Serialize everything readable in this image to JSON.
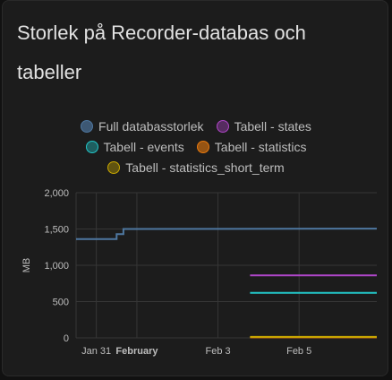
{
  "card": {
    "title": "Storlek på Recorder-databas och tabeller"
  },
  "chart_data": {
    "type": "line",
    "ylabel": "MB",
    "ylim": [
      0,
      2000
    ],
    "yticks": [
      0,
      500,
      1000,
      1500,
      2000
    ],
    "ytick_labels": [
      "0",
      "500",
      "1,000",
      "1,500",
      "2,000"
    ],
    "xlim": [
      "2024-01-30T12:00",
      "2024-02-06T22:00"
    ],
    "xticks": [
      {
        "x": "2024-01-31",
        "label": "Jan 31",
        "bold": false
      },
      {
        "x": "2024-02-01",
        "label": "February",
        "bold": true
      },
      {
        "x": "2024-02-03",
        "label": "Feb 3",
        "bold": false
      },
      {
        "x": "2024-02-05",
        "label": "Feb 5",
        "bold": false
      }
    ],
    "grid": true,
    "legend_position": "top",
    "series": [
      {
        "name": "Full databasstorlek",
        "color": "#4e77a0",
        "points": [
          [
            "2024-01-30T12:00",
            1360
          ],
          [
            "2024-01-31T12:00",
            1360
          ],
          [
            "2024-01-31T12:00",
            1430
          ],
          [
            "2024-01-31T16:00",
            1430
          ],
          [
            "2024-01-31T16:00",
            1500
          ],
          [
            "2024-02-06T22:00",
            1505
          ]
        ]
      },
      {
        "name": "Tabell - states",
        "color": "#b046c9",
        "points": [
          [
            "2024-02-03T19:00",
            860
          ],
          [
            "2024-02-06T22:00",
            860
          ]
        ]
      },
      {
        "name": "Tabell - events",
        "color": "#23c6c8",
        "points": [
          [
            "2024-02-03T19:00",
            620
          ],
          [
            "2024-02-06T22:00",
            620
          ]
        ]
      },
      {
        "name": "Tabell - statistics",
        "color": "#e8790e",
        "points": [
          [
            "2024-02-03T19:00",
            8
          ],
          [
            "2024-02-06T22:00",
            8
          ]
        ]
      },
      {
        "name": "Tabell - statistics_short_term",
        "color": "#c9a800",
        "points": [
          [
            "2024-02-03T19:00",
            14
          ],
          [
            "2024-02-06T22:00",
            14
          ]
        ]
      }
    ]
  }
}
